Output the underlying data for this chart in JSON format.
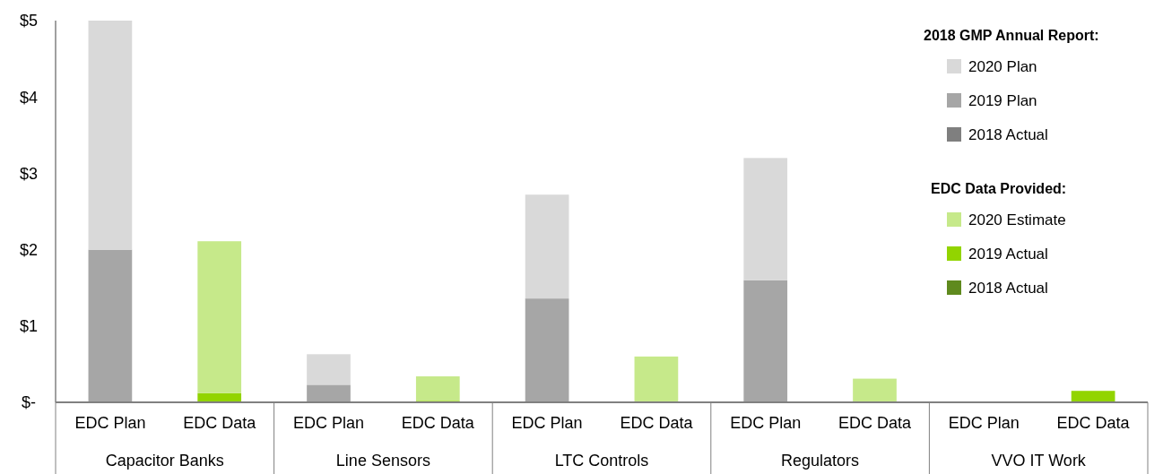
{
  "chart_data": {
    "type": "bar",
    "stacked": true,
    "categories": [
      "EDC Plan",
      "EDC Data",
      "EDC Plan",
      "EDC Data",
      "EDC Plan",
      "EDC Data",
      "EDC Plan",
      "EDC Data",
      "EDC Plan",
      "EDC Data"
    ],
    "series": [
      {
        "name": "2018 Actual",
        "color": "#7f7f7f",
        "values": [
          0,
          null,
          0,
          null,
          0,
          null,
          0,
          null,
          0,
          null
        ]
      },
      {
        "name": "2019 Plan",
        "color": "#a6a6a6",
        "values": [
          2.0,
          null,
          0.23,
          null,
          1.36,
          null,
          1.6,
          null,
          0,
          null
        ]
      },
      {
        "name": "2020 Plan",
        "color": "#d9d9d9",
        "values": [
          3.0,
          null,
          0.4,
          null,
          1.36,
          null,
          1.6,
          null,
          0,
          null
        ]
      },
      {
        "name": "2018 Actual",
        "color": "#5f8a1e",
        "values": [
          null,
          0,
          null,
          0,
          null,
          0,
          null,
          0,
          null,
          0
        ]
      },
      {
        "name": "2019 Actual",
        "color": "#92d400",
        "values": [
          null,
          0.12,
          null,
          0.02,
          null,
          0,
          null,
          0,
          null,
          0.15
        ]
      },
      {
        "name": "2020 Estimate",
        "color": "#c6e98a",
        "values": [
          null,
          1.99,
          null,
          0.32,
          null,
          0.6,
          null,
          0.31,
          null,
          0
        ]
      }
    ],
    "ylim": [
      0,
      5
    ],
    "yticks": [
      {
        "value": 0,
        "label": "$-"
      },
      {
        "value": 1,
        "label": "$1"
      },
      {
        "value": 2,
        "label": "$2"
      },
      {
        "value": 3,
        "label": "$3"
      },
      {
        "value": 4,
        "label": "$4"
      },
      {
        "value": 5,
        "label": "$5"
      }
    ],
    "legend": "right",
    "legend_title": "2018 GMP Annual Report:",
    "annotations": [
      "EDC Data Provided:",
      "Capacitor Banks",
      "Line Sensors",
      "LTC Controls",
      "Regulators",
      "VVO IT Work"
    ]
  }
}
